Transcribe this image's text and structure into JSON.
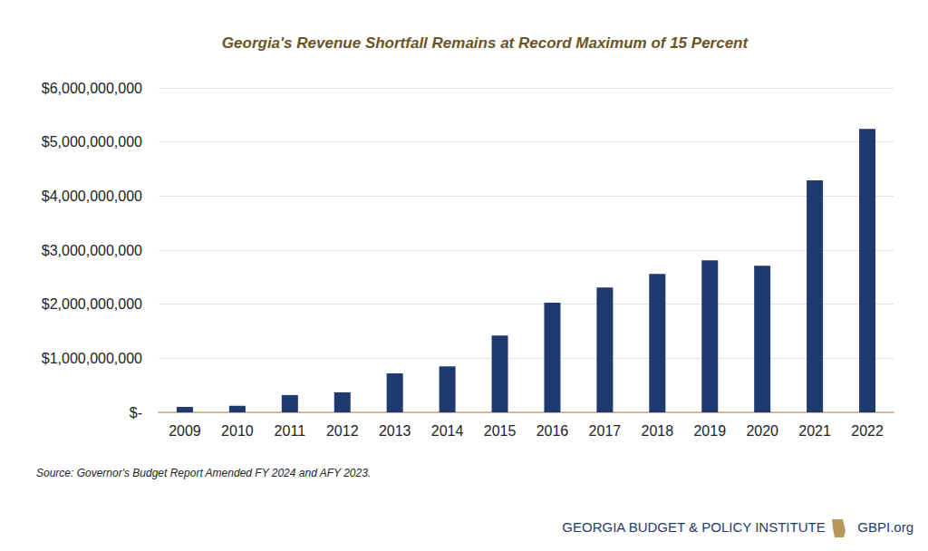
{
  "chart_data": {
    "type": "bar",
    "title": "Georgia's Revenue Shortfall Remains at Record Maximum of 15 Percent",
    "source": "Source: Governor's Budget Report Amended FY 2024 and AFY 2023.",
    "footer": [
      "GEORGIA BUDGET & POLICY INSTITUTE",
      "GBPI.org"
    ],
    "categories": [
      "2009",
      "2010",
      "2011",
      "2012",
      "2013",
      "2014",
      "2015",
      "2016",
      "2017",
      "2018",
      "2019",
      "2020",
      "2021",
      "2022"
    ],
    "values": [
      100000000,
      120000000,
      320000000,
      370000000,
      720000000,
      850000000,
      1420000000,
      2030000000,
      2310000000,
      2560000000,
      2810000000,
      2710000000,
      4290000000,
      5240000000
    ],
    "color": "#1f3a6e",
    "ylim": [
      0,
      6000000000
    ],
    "yticks": [
      {
        "value": 0,
        "label": "$-"
      },
      {
        "value": 1000000000,
        "label": "$1,000,000,000"
      },
      {
        "value": 2000000000,
        "label": "$2,000,000,000"
      },
      {
        "value": 3000000000,
        "label": "$3,000,000,000"
      },
      {
        "value": 4000000000,
        "label": "$4,000,000,000"
      },
      {
        "value": 5000000000,
        "label": "$5,000,000,000"
      },
      {
        "value": 6000000000,
        "label": "$6,000,000,000"
      }
    ],
    "grid": true
  }
}
